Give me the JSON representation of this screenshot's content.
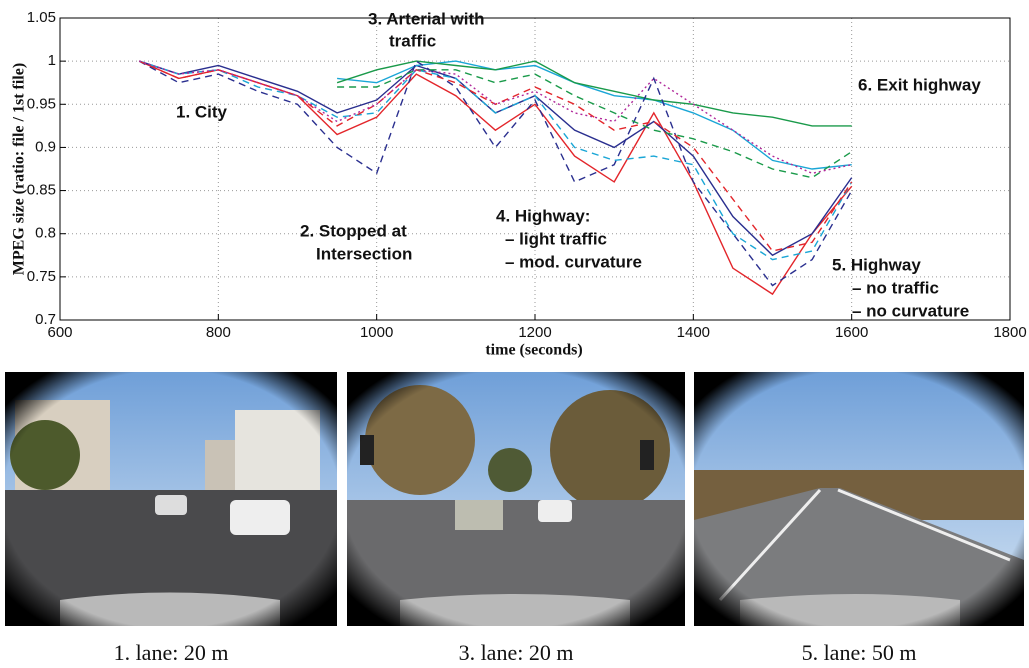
{
  "chart_data": {
    "type": "line",
    "xlabel": "time (seconds)",
    "ylabel": "MPEG size (ratio: file / 1st file)",
    "xlim": [
      600,
      1800
    ],
    "ylim": [
      0.7,
      1.05
    ],
    "xticks": [
      600,
      800,
      1000,
      1200,
      1400,
      1600,
      1800
    ],
    "yticks": [
      0.7,
      0.75,
      0.8,
      0.85,
      0.9,
      0.95,
      1,
      1.05
    ],
    "grid": true,
    "x": [
      700,
      750,
      800,
      850,
      900,
      950,
      1000,
      1050,
      1100,
      1150,
      1200,
      1250,
      1300,
      1350,
      1400,
      1450,
      1500,
      1550,
      1600
    ],
    "series": [
      {
        "color": "#e3262b",
        "dash": "solid",
        "values": [
          1.0,
          0.98,
          0.99,
          0.975,
          0.96,
          0.915,
          0.935,
          0.985,
          0.96,
          0.92,
          0.95,
          0.89,
          0.86,
          0.94,
          0.86,
          0.76,
          0.73,
          0.8,
          0.855
        ]
      },
      {
        "color": "#2a2f8f",
        "dash": "solid",
        "values": [
          1.0,
          0.985,
          0.995,
          0.98,
          0.965,
          0.94,
          0.955,
          0.995,
          0.98,
          0.94,
          0.96,
          0.92,
          0.9,
          0.93,
          0.89,
          0.82,
          0.775,
          0.8,
          0.865
        ]
      },
      {
        "color": "#1aa6d6",
        "dash": "solid",
        "values": [
          null,
          null,
          null,
          null,
          null,
          0.98,
          0.975,
          0.995,
          1.0,
          0.99,
          0.995,
          0.975,
          0.96,
          0.955,
          0.94,
          0.92,
          0.885,
          0.875,
          0.88
        ]
      },
      {
        "color": "#1a9a4a",
        "dash": "solid",
        "values": [
          null,
          null,
          null,
          null,
          null,
          0.975,
          0.99,
          1.0,
          0.995,
          0.99,
          1.0,
          0.975,
          0.965,
          0.955,
          0.95,
          0.94,
          0.935,
          0.925,
          0.925
        ]
      },
      {
        "color": "#2a2f8f",
        "dash": "dashed",
        "values": [
          1.0,
          0.975,
          0.985,
          0.965,
          0.95,
          0.9,
          0.87,
          1.0,
          0.97,
          0.9,
          0.955,
          0.86,
          0.88,
          0.98,
          0.86,
          0.8,
          0.74,
          0.77,
          0.85
        ]
      },
      {
        "color": "#1aa6d6",
        "dash": "dashed",
        "values": [
          1.0,
          0.985,
          0.99,
          0.97,
          0.96,
          0.935,
          0.94,
          0.99,
          0.98,
          0.94,
          0.96,
          0.9,
          0.885,
          0.89,
          0.88,
          0.8,
          0.77,
          0.78,
          0.86
        ]
      },
      {
        "color": "#e3262b",
        "dash": "dashed",
        "values": [
          1.0,
          0.98,
          0.99,
          0.975,
          0.96,
          0.925,
          0.95,
          0.99,
          0.975,
          0.95,
          0.97,
          0.95,
          0.92,
          0.93,
          0.9,
          0.84,
          0.78,
          0.79,
          0.86
        ]
      },
      {
        "color": "#1a9a4a",
        "dash": "dashed",
        "values": [
          null,
          null,
          null,
          null,
          null,
          0.97,
          0.97,
          0.99,
          0.99,
          0.975,
          0.985,
          0.96,
          0.94,
          0.92,
          0.91,
          0.895,
          0.875,
          0.865,
          0.895
        ]
      },
      {
        "color": "#b0279a",
        "dash": "dotted",
        "values": [
          1.0,
          0.985,
          0.99,
          0.975,
          0.96,
          0.93,
          0.95,
          0.99,
          0.985,
          0.95,
          0.965,
          0.94,
          0.93,
          0.98,
          0.95,
          0.92,
          0.89,
          0.87,
          0.88
        ]
      }
    ],
    "annotations": [
      [
        "1. City"
      ],
      [
        "3. Arterial with",
        "traffic"
      ],
      [
        "2. Stopped at",
        "Intersection"
      ],
      [
        "4. Highway:",
        "– light traffic",
        "– mod. curvature"
      ],
      [
        "5. Highway",
        "– no traffic",
        "– no curvature"
      ],
      [
        "6. Exit highway"
      ]
    ]
  },
  "photos": [
    {
      "caption": "1. lane: 20 m"
    },
    {
      "caption": "3. lane: 20 m"
    },
    {
      "caption": "5. lane: 50 m"
    }
  ]
}
